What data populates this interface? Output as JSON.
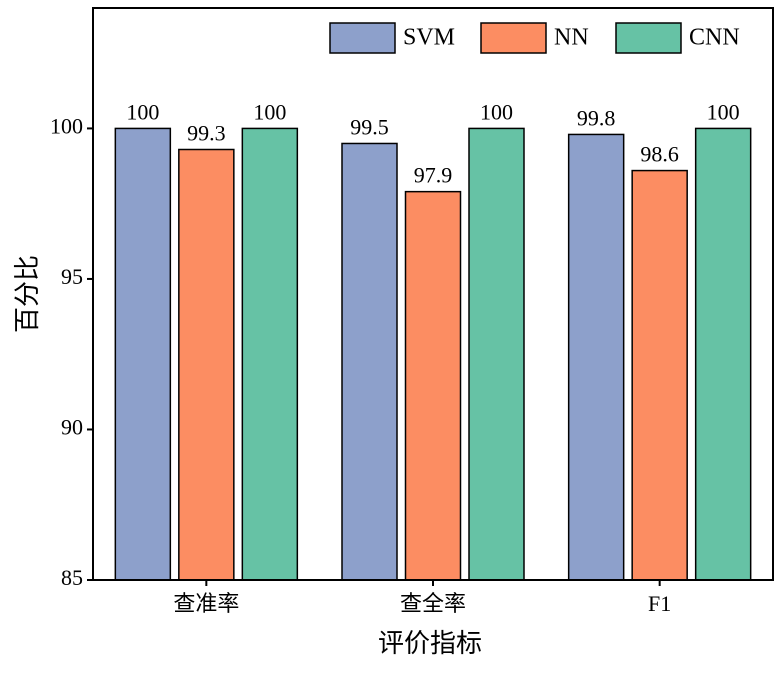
{
  "chart_data": {
    "type": "bar",
    "categories": [
      "查准率",
      "查全率",
      "F1"
    ],
    "series": [
      {
        "name": "SVM",
        "color": "#8da0cb",
        "values": [
          100,
          99.5,
          99.8
        ]
      },
      {
        "name": "NN",
        "color": "#fc8d62",
        "values": [
          99.3,
          97.9,
          98.6
        ]
      },
      {
        "name": "CNN",
        "color": "#66c2a5",
        "values": [
          100,
          100,
          100
        ]
      }
    ],
    "xlabel": "评价指标",
    "ylabel": "百分比",
    "ylim": [
      85,
      104
    ],
    "yticks": [
      85,
      90,
      95,
      100
    ],
    "legend": "upper right"
  }
}
